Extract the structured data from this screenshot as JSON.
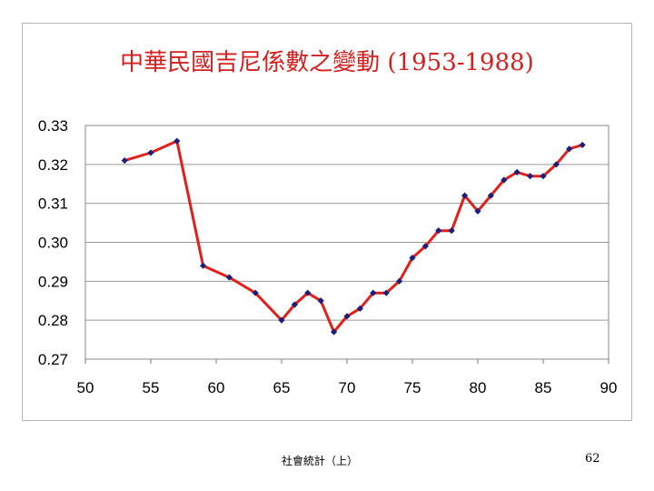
{
  "slide": {
    "footer_left": "社會統計（上）",
    "page_number": "62"
  },
  "chart_data": {
    "type": "line",
    "title": "中華民國吉尼係數之變動 (1953-1988)",
    "xlabel": "",
    "ylabel": "",
    "xlim": [
      50,
      90
    ],
    "ylim": [
      0.27,
      0.33
    ],
    "x_ticks": [
      "50",
      "55",
      "60",
      "65",
      "70",
      "75",
      "80",
      "85",
      "90"
    ],
    "y_ticks": [
      "0.27",
      "0.28",
      "0.29",
      "0.30",
      "0.31",
      "0.32",
      "0.33"
    ],
    "grid": true,
    "series": [
      {
        "color": "#e0201b",
        "marker_color": "#1b1f7a",
        "x": [
          53,
          55,
          57,
          59,
          61,
          63,
          65,
          66,
          67,
          68,
          69,
          70,
          71,
          72,
          73,
          74,
          75,
          76,
          77,
          78,
          79,
          80,
          81,
          82,
          83,
          84,
          85,
          86,
          87,
          88
        ],
        "y": [
          0.321,
          0.323,
          0.326,
          0.294,
          0.291,
          0.287,
          0.28,
          0.284,
          0.287,
          0.285,
          0.277,
          0.281,
          0.283,
          0.287,
          0.287,
          0.29,
          0.296,
          0.299,
          0.303,
          0.303,
          0.312,
          0.308,
          0.312,
          0.316,
          0.318,
          0.317,
          0.317,
          0.32,
          0.324,
          0.325
        ]
      }
    ]
  }
}
